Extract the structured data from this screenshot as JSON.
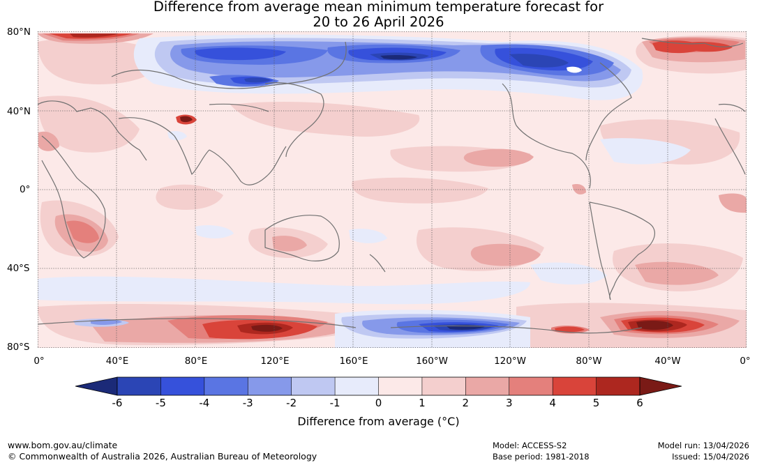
{
  "title": {
    "line1": "Difference from average mean minimum temperature forecast for",
    "line2": "20 to 26 April 2026"
  },
  "map": {
    "lat_labels": [
      "80°N",
      "40°N",
      "0°",
      "40°S",
      "80°S"
    ],
    "lon_labels": [
      "0°",
      "40°E",
      "80°E",
      "120°E",
      "160°E",
      "160°W",
      "120°W",
      "80°W",
      "40°W",
      "0°"
    ]
  },
  "colorbar": {
    "title": "Difference from average (°C)",
    "ticks": [
      "-6",
      "-5",
      "-4",
      "-3",
      "-2",
      "-1",
      "0",
      "1",
      "2",
      "3",
      "4",
      "5",
      "6"
    ],
    "colors": [
      "#1b2a78",
      "#2b45b5",
      "#3651db",
      "#5a75e3",
      "#8699ea",
      "#bfc8f2",
      "#e7ebfb",
      "#fce9e8",
      "#f4cfce",
      "#eaa8a6",
      "#e4807c",
      "#d9443a",
      "#ad271f",
      "#7a1a16"
    ]
  },
  "footer": {
    "website": "www.bom.gov.au/climate",
    "copyright": "© Commonwealth of Australia 2026, Australian Bureau of Meteorology",
    "model": "Model: ACCESS-S2",
    "base_period": "Base period: 1981-2018",
    "model_run": "Model run: 13/04/2026",
    "issued": "Issued: 15/04/2026"
  }
}
